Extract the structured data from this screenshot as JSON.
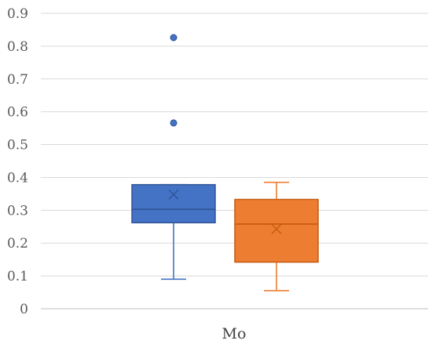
{
  "chart_data": {
    "type": "boxplot",
    "categories": [
      "Mo"
    ],
    "ylim": [
      0,
      0.9
    ],
    "yticks": [
      0,
      0.1,
      0.2,
      0.3,
      0.4,
      0.5,
      0.6,
      0.7,
      0.8,
      0.9
    ],
    "ytick_labels": [
      "0",
      "0.1",
      "0.2",
      "0.3",
      "0.4",
      "0.5",
      "0.6",
      "0.7",
      "0.8",
      "0.9"
    ],
    "grid": true,
    "legend": "none",
    "series": [
      {
        "color": "#4472C4",
        "stroke": "#2F5597",
        "whisker_low": 0.09,
        "q1": 0.262,
        "median": 0.303,
        "q3": 0.378,
        "whisker_high": 0.378,
        "mean": 0.348,
        "outliers": [
          0.566,
          0.826
        ]
      },
      {
        "color": "#ED7D31",
        "stroke": "#C55A11",
        "whisker_low": 0.055,
        "q1": 0.142,
        "median": 0.258,
        "q3": 0.333,
        "whisker_high": 0.385,
        "mean": 0.243,
        "outliers": []
      }
    ]
  }
}
